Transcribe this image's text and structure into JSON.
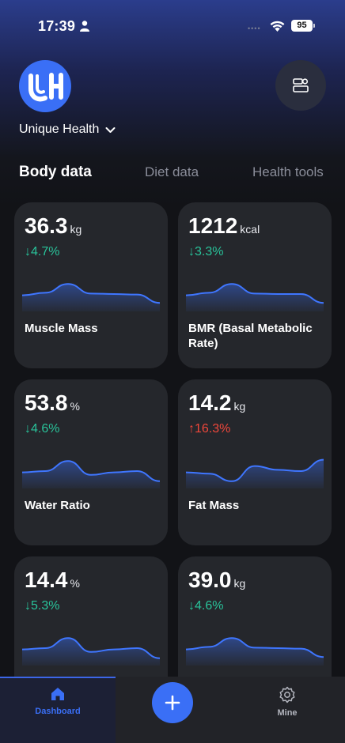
{
  "status_bar": {
    "time": "17:39",
    "battery": "95"
  },
  "header": {
    "brand_name": "Unique Health"
  },
  "tabs": [
    {
      "label": "Body data",
      "active": true
    },
    {
      "label": "Diet data",
      "active": false
    },
    {
      "label": "Health tools",
      "active": false
    }
  ],
  "cards": [
    {
      "value": "36.3",
      "unit": "kg",
      "delta": "↓4.7%",
      "direction": "down",
      "label": "Muscle Mass",
      "trend": [
        0.45,
        0.55,
        0.9,
        0.52,
        0.5,
        0.48,
        0.15
      ]
    },
    {
      "value": "1212",
      "unit": "kcal",
      "delta": "↓3.3%",
      "direction": "down",
      "label": "BMR (Basal Metabolic Rate)",
      "trend": [
        0.45,
        0.55,
        0.9,
        0.52,
        0.5,
        0.5,
        0.15
      ]
    },
    {
      "value": "53.8",
      "unit": "%",
      "delta": "↓4.6%",
      "direction": "down",
      "label": "Water Ratio",
      "trend": [
        0.45,
        0.5,
        0.9,
        0.35,
        0.45,
        0.5,
        0.1
      ]
    },
    {
      "value": "14.2",
      "unit": "kg",
      "delta": "↑16.3%",
      "direction": "up",
      "label": "Fat Mass",
      "trend": [
        0.45,
        0.4,
        0.1,
        0.7,
        0.55,
        0.5,
        0.95
      ]
    },
    {
      "value": "14.4",
      "unit": "%",
      "delta": "↓5.3%",
      "direction": "down",
      "label": "",
      "trend": [
        0.45,
        0.5,
        0.9,
        0.35,
        0.45,
        0.5,
        0.1
      ]
    },
    {
      "value": "39.0",
      "unit": "kg",
      "delta": "↓4.6%",
      "direction": "down",
      "label": "",
      "trend": [
        0.45,
        0.55,
        0.9,
        0.52,
        0.5,
        0.48,
        0.15
      ]
    }
  ],
  "bottom_nav": {
    "dashboard_label": "Dashboard",
    "mine_label": "Mine"
  },
  "colors": {
    "accent": "#3a6ff6",
    "down": "#29c39a",
    "up": "#f0473b",
    "card_bg": "#25272c"
  },
  "icons": [
    "person-icon",
    "wifi-icon",
    "battery-icon",
    "logo",
    "profile-card-icon",
    "chevron-down-icon",
    "home-icon",
    "plus-icon",
    "gear-icon"
  ]
}
